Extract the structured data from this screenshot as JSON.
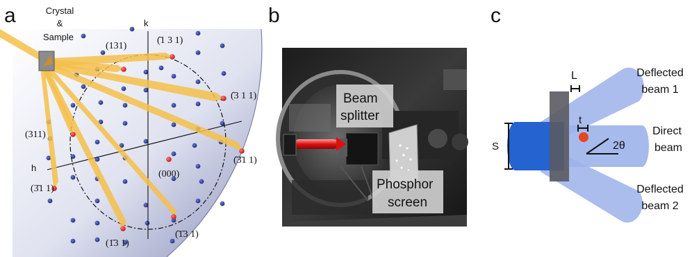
{
  "panels": {
    "a": {
      "letter": "a",
      "crystal_label_lines": [
        "Crystal",
        "&",
        "Sample"
      ],
      "axis_h": "h",
      "axis_k": "k",
      "miller_labels": {
        "l131": "(131)",
        "l_1b31": "(̄1 3 1)",
        "l_3b11": "(̄3 1 1)",
        "l311": "(311)",
        "l_3b1b1": "(̄3̄1 1)",
        "l000": "(000)",
        "l3_1b1": "(3̄1 1)",
        "l1_3b1": "(1̄3 1)",
        "l_1b3b1": "(̄1̄3 1)"
      }
    },
    "b": {
      "letter": "b",
      "beam_splitter_lines": [
        "Beam",
        "splitter"
      ],
      "phosphor_lines": [
        "Phosphor",
        "screen"
      ]
    },
    "c": {
      "letter": "c",
      "label_L": "L",
      "label_S": "S",
      "label_t": "t",
      "label_angle": "2θ",
      "deflected1_lines": [
        "Deflected",
        "beam 1"
      ],
      "direct_lines": [
        "Direct",
        "beam"
      ],
      "deflected2_lines": [
        "Deflected",
        "beam 2"
      ]
    }
  },
  "colors": {
    "beam_yellow": "#f5c04a",
    "lattice_blue": "#2f3d8f",
    "reflection_red": "#e21b1b",
    "direct_beam_blue": "#2563d1",
    "deflected_beam_blue": "#9cb2ea",
    "crystal_gray": "#5a5a60"
  }
}
